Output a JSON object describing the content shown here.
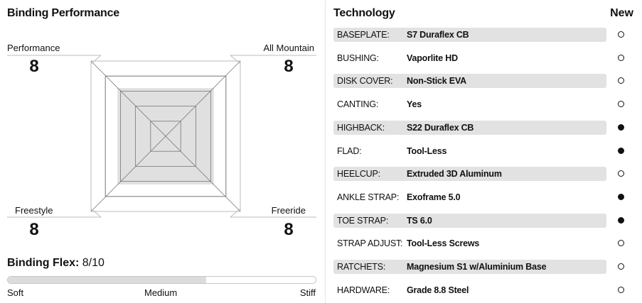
{
  "binding_performance": {
    "title": "Binding Performance",
    "axes": [
      {
        "label": "Performance",
        "value": "8"
      },
      {
        "label": "All Mountain",
        "value": "8"
      },
      {
        "label": "Freestyle",
        "value": "8"
      },
      {
        "label": "Freeride",
        "value": "8"
      }
    ],
    "radar_max": 10,
    "radar_levels": 5,
    "flex": {
      "label": "Binding Flex:",
      "value": "8/10",
      "level": 0.8,
      "ticks": [
        "Soft",
        "Medium",
        "Stiff"
      ]
    },
    "colors": {
      "radar_fill": "#e0e0e0",
      "radar_stroke": "#777777",
      "bar_fill": "#dcdcdc"
    }
  },
  "technology": {
    "title": "Technology",
    "new_header": "New",
    "rows": [
      {
        "key": "BASEPLATE:",
        "value": "S7 Duraflex CB",
        "is_new": false
      },
      {
        "key": "BUSHING:",
        "value": "Vaporlite HD",
        "is_new": false
      },
      {
        "key": "DISK COVER:",
        "value": "Non-Stick EVA",
        "is_new": false
      },
      {
        "key": "CANTING:",
        "value": "Yes",
        "is_new": false
      },
      {
        "key": "HIGHBACK:",
        "value": "S22 Duraflex CB",
        "is_new": true
      },
      {
        "key": "FLAD:",
        "value": "Tool-Less",
        "is_new": true
      },
      {
        "key": "HEELCUP:",
        "value": "Extruded 3D Aluminum",
        "is_new": false
      },
      {
        "key": "ANKLE STRAP:",
        "value": "Exoframe 5.0",
        "is_new": true
      },
      {
        "key": "TOE STRAP:",
        "value": "TS 6.0",
        "is_new": true
      },
      {
        "key": "STRAP ADJUST:",
        "value": "Tool-Less Screws",
        "is_new": false
      },
      {
        "key": "RATCHETS:",
        "value": "Magnesium S1 w/Aluminium Base",
        "is_new": false
      },
      {
        "key": "HARDWARE:",
        "value": "Grade 8.8 Steel",
        "is_new": false
      }
    ]
  }
}
